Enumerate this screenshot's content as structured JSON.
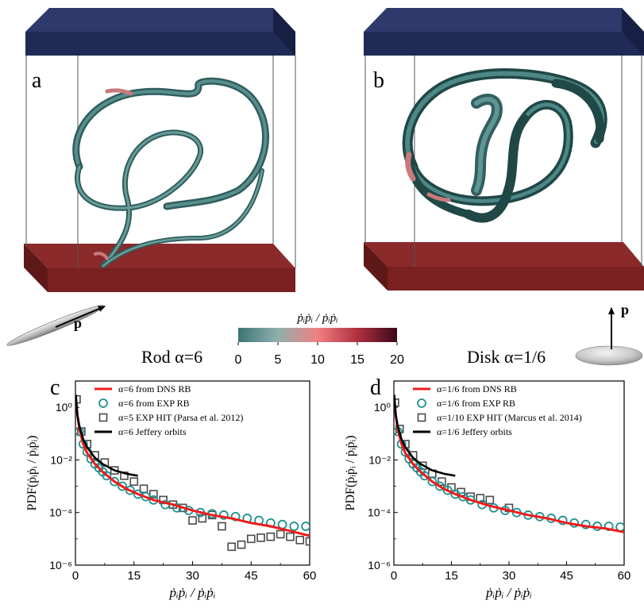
{
  "colors": {
    "lid_top": "#2d3a6b",
    "lid_front": "#1f2a55",
    "lid_side": "#171f44",
    "base_top": "#8a2a2a",
    "base_front": "#7a2020",
    "base_side": "#5e1818",
    "ribbon": "#3e7473",
    "ribbon_highlight": "#c97a7c",
    "red_line": "#ef1c1c",
    "teal_circle": "#1e8f8f",
    "gray_square": "#4a4a4a",
    "black_line": "#000000"
  },
  "panels": {
    "a": {
      "label": "a"
    },
    "b": {
      "label": "b"
    },
    "c": {
      "label": "c"
    },
    "d": {
      "label": "d"
    }
  },
  "particles": {
    "rod_label": "Rod α=6",
    "disk_label": "Disk α=1/6",
    "vector_label": "p"
  },
  "colorbar": {
    "title": "ṗᵢṗᵢ / ṗᵢṗᵢ",
    "ticks": [
      "0",
      "5",
      "10",
      "15",
      "20"
    ],
    "range": [
      0,
      20
    ],
    "stops": [
      "#3e7473",
      "#8fb0ae",
      "#f08080",
      "#b03040",
      "#3a0a1a"
    ]
  },
  "chart_data": [
    {
      "panel": "c",
      "type": "line",
      "ylabel": "PDF(ṗᵢṗᵢ / ṗᵢṗᵢ)",
      "xlabel": "ṗᵢṗᵢ / ṗᵢṗᵢ",
      "xlim": [
        0,
        60
      ],
      "ylim_log10": [
        -6,
        1
      ],
      "yscale": "log",
      "xticks": [
        "0",
        "15",
        "30",
        "45",
        "60"
      ],
      "yticks": [
        "10⁰",
        "10⁻²",
        "10⁻⁴",
        "10⁻⁶"
      ],
      "legend_position": "top-right",
      "series": [
        {
          "name": "α=6 from DNS RB",
          "style": "line",
          "color": "#ef1c1c",
          "x": [
            0.1,
            0.5,
            1,
            2,
            3,
            5,
            7,
            10,
            13,
            16,
            20,
            25,
            30,
            35,
            40,
            45,
            50,
            55,
            60
          ],
          "y": [
            2.0,
            0.5,
            0.15,
            0.04,
            0.018,
            0.007,
            0.0035,
            0.0015,
            0.0008,
            0.0005,
            0.0003,
            0.0002,
            0.00012,
            8e-05,
            6e-05,
            4e-05,
            3e-05,
            2e-05,
            1.3e-05
          ]
        },
        {
          "name": "α=6 from EXP RB",
          "style": "circle",
          "color": "#1e8f8f",
          "x": [
            1,
            2,
            3,
            4,
            5,
            6,
            7,
            8,
            10,
            12,
            14,
            16,
            18,
            20,
            23,
            26,
            29,
            32,
            35,
            38,
            41,
            44,
            47,
            50,
            53,
            56,
            59
          ],
          "y": [
            0.12,
            0.04,
            0.02,
            0.011,
            0.007,
            0.005,
            0.0035,
            0.0025,
            0.0015,
            0.001,
            0.0007,
            0.0005,
            0.0004,
            0.0003,
            0.0002,
            0.00015,
            0.00012,
            0.0001,
            9e-05,
            8e-05,
            7e-05,
            6e-05,
            5e-05,
            4e-05,
            3.5e-05,
            3e-05,
            3e-05
          ]
        },
        {
          "name": "α=5 EXP HIT (Parsa et al. 2012)",
          "style": "square",
          "color": "#4a4a4a",
          "x": [
            0.3,
            1.5,
            3,
            5,
            7.5,
            10,
            12.5,
            15,
            17.5,
            20,
            22.5,
            25,
            27.5,
            30,
            32.5,
            35,
            37.5,
            40,
            42.5,
            45,
            47.5,
            50,
            52.5,
            55,
            57.5,
            60
          ],
          "y": [
            2.0,
            0.12,
            0.04,
            0.015,
            0.008,
            0.004,
            0.0025,
            0.0015,
            0.0008,
            0.0005,
            0.0003,
            0.0002,
            0.00015,
            5e-05,
            6e-05,
            8e-05,
            3e-05,
            5e-06,
            6e-06,
            1e-05,
            1.1e-05,
            1.2e-05,
            1.5e-05,
            1.2e-05,
            9e-06,
            8e-06
          ]
        },
        {
          "name": "α=6 Jeffery orbits",
          "style": "line",
          "color": "#000000",
          "x": [
            0.1,
            0.5,
            1,
            2,
            3,
            5,
            7,
            10,
            13,
            16
          ],
          "y": [
            3.0,
            0.5,
            0.2,
            0.06,
            0.03,
            0.012,
            0.007,
            0.004,
            0.003,
            0.0025
          ]
        }
      ]
    },
    {
      "panel": "d",
      "type": "line",
      "ylabel": "PDF(ṗᵢṗᵢ / ṗᵢṗᵢ)",
      "xlabel": "ṗᵢṗᵢ / ṗᵢṗᵢ",
      "xlim": [
        0,
        60
      ],
      "ylim_log10": [
        -6,
        1
      ],
      "yscale": "log",
      "xticks": [
        "0",
        "15",
        "30",
        "45",
        "60"
      ],
      "yticks": [
        "10⁰",
        "10⁻²",
        "10⁻⁴",
        "10⁻⁶"
      ],
      "legend_position": "top-right",
      "series": [
        {
          "name": "α=1/6 from DNS RB",
          "style": "line",
          "color": "#ef1c1c",
          "x": [
            0.1,
            0.5,
            1,
            2,
            3,
            5,
            7,
            10,
            13,
            16,
            20,
            25,
            30,
            35,
            40,
            45,
            50,
            55,
            60
          ],
          "y": [
            2.0,
            0.5,
            0.15,
            0.04,
            0.018,
            0.007,
            0.0035,
            0.0015,
            0.0008,
            0.0005,
            0.0003,
            0.00018,
            0.00012,
            8e-05,
            6e-05,
            4e-05,
            3e-05,
            2.5e-05,
            1.8e-05
          ]
        },
        {
          "name": "α=1/6 from EXP RB",
          "style": "circle",
          "color": "#1e8f8f",
          "x": [
            1,
            2,
            3,
            4,
            5,
            6,
            7,
            8,
            10,
            12,
            14,
            16,
            18,
            20,
            23,
            26,
            29,
            32,
            35,
            38,
            41,
            44,
            47,
            50,
            53,
            56,
            59
          ],
          "y": [
            0.12,
            0.04,
            0.02,
            0.011,
            0.007,
            0.005,
            0.0035,
            0.0025,
            0.0015,
            0.001,
            0.0007,
            0.0005,
            0.0004,
            0.0003,
            0.0002,
            0.00015,
            0.00012,
            0.0001,
            8e-05,
            7e-05,
            6e-05,
            5e-05,
            4e-05,
            3.5e-05,
            3e-05,
            3e-05,
            2.8e-05
          ]
        },
        {
          "name": "α=1/10 EXP HIT (Marcus et al. 2014)",
          "style": "square",
          "color": "#4a4a4a",
          "x": [
            0.3,
            1.5,
            3,
            5,
            7.5,
            10,
            12.5,
            15,
            17.5,
            20,
            22.5,
            25,
            30
          ],
          "y": [
            1.5,
            0.15,
            0.04,
            0.015,
            0.006,
            0.003,
            0.0015,
            0.0009,
            0.0006,
            0.0004,
            0.00035,
            0.0003,
            0.00015
          ]
        },
        {
          "name": "α=1/6 Jeffery orbits",
          "style": "line",
          "color": "#000000",
          "x": [
            0.1,
            0.5,
            1,
            2,
            3,
            5,
            7,
            10,
            13,
            16
          ],
          "y": [
            3.0,
            0.5,
            0.2,
            0.06,
            0.03,
            0.012,
            0.007,
            0.004,
            0.003,
            0.0025
          ]
        }
      ]
    }
  ]
}
